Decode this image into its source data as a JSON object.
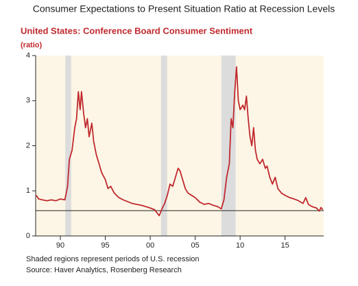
{
  "chart_data": {
    "type": "line",
    "title": "Consumer Expectations to Present Situation Ratio at Recession Levels",
    "subtitle": "United States: Conference Board Consumer Sentiment",
    "y_label": "(ratio)",
    "note": "Shaded regions represent periods of U.S. recession",
    "source": "Source: Haver Analytics, Rosenberg Research",
    "color": "#c0282d",
    "background": "#fdf6e6",
    "recession_color": "#dcdcdc",
    "recessions": [
      [
        1990.55,
        1991.2
      ],
      [
        2001.2,
        2001.88
      ],
      [
        2007.92,
        2009.5
      ]
    ],
    "reference_line": 0.56,
    "xlim": [
      1987.25,
      2019.3
    ],
    "xticks": [
      {
        "value": 1990,
        "label": "90"
      },
      {
        "value": 1995,
        "label": "95"
      },
      {
        "value": 2000,
        "label": "00"
      },
      {
        "value": 2005,
        "label": "05"
      },
      {
        "value": 2010,
        "label": "10"
      },
      {
        "value": 2015,
        "label": "15"
      }
    ],
    "ylim": [
      0,
      4
    ],
    "yticks": [
      0,
      1,
      2,
      3,
      4
    ],
    "x": [
      1987.3,
      1987.6,
      1988,
      1988.5,
      1989,
      1989.5,
      1990,
      1990.5,
      1990.8,
      1991,
      1991.3,
      1991.6,
      1991.8,
      1992,
      1992.2,
      1992.35,
      1992.6,
      1992.8,
      1993,
      1993.2,
      1993.5,
      1993.7,
      1994,
      1994.3,
      1994.6,
      1995,
      1995.3,
      1995.6,
      1996,
      1996.5,
      1997,
      1997.5,
      1998,
      1998.5,
      1999,
      1999.5,
      2000,
      2000.5,
      2000.8,
      2001,
      2001.3,
      2001.6,
      2001.9,
      2002.2,
      2002.5,
      2002.8,
      2003.1,
      2003.3,
      2003.6,
      2003.9,
      2004.2,
      2004.6,
      2005,
      2005.5,
      2006,
      2006.5,
      2007,
      2007.5,
      2007.9,
      2008.2,
      2008.5,
      2008.8,
      2009,
      2009.2,
      2009.4,
      2009.6,
      2009.8,
      2010,
      2010.3,
      2010.5,
      2010.7,
      2010.9,
      2011.1,
      2011.3,
      2011.5,
      2011.7,
      2011.9,
      2012.2,
      2012.5,
      2012.8,
      2013,
      2013.3,
      2013.6,
      2013.9,
      2014.2,
      2014.6,
      2015,
      2015.5,
      2016,
      2016.5,
      2017,
      2017.3,
      2017.6,
      2018,
      2018.5,
      2018.8,
      2019,
      2019.2
    ],
    "values": [
      0.9,
      0.82,
      0.8,
      0.78,
      0.8,
      0.78,
      0.82,
      0.8,
      1.1,
      1.7,
      1.9,
      2.4,
      2.6,
      3.2,
      2.8,
      3.2,
      2.7,
      2.4,
      2.6,
      2.2,
      2.5,
      2.1,
      1.8,
      1.6,
      1.4,
      1.25,
      1.05,
      1.1,
      0.95,
      0.85,
      0.8,
      0.76,
      0.72,
      0.7,
      0.68,
      0.65,
      0.62,
      0.58,
      0.5,
      0.45,
      0.6,
      0.72,
      0.9,
      1.15,
      1.1,
      1.3,
      1.5,
      1.45,
      1.25,
      1.05,
      0.95,
      0.9,
      0.85,
      0.75,
      0.7,
      0.72,
      0.68,
      0.65,
      0.6,
      0.8,
      1.3,
      1.6,
      2.6,
      2.4,
      3.2,
      3.75,
      3.0,
      2.8,
      2.9,
      2.8,
      3.1,
      2.6,
      2.2,
      2.0,
      2.4,
      1.9,
      1.7,
      1.6,
      1.7,
      1.5,
      1.55,
      1.3,
      1.15,
      1.3,
      1.05,
      0.95,
      0.9,
      0.85,
      0.82,
      0.78,
      0.72,
      0.85,
      0.7,
      0.65,
      0.62,
      0.55,
      0.63,
      0.58
    ]
  }
}
